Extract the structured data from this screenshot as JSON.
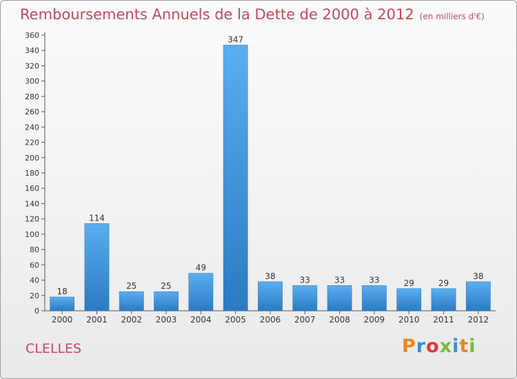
{
  "header": {
    "title": "Remboursements Annuels de la Dette de 2000 à 2012",
    "unit": "(en milliers d'€)"
  },
  "footer": {
    "commune": "CLELLES",
    "logo_text": "Proxiti",
    "logo_colors": [
      "#e8861e",
      "#3a8fd0",
      "#d63a3a",
      "#7ab83a",
      "#3a8fd0",
      "#e8861e",
      "#7ab83a"
    ]
  },
  "colors": {
    "bar_light": "#5aaef0",
    "bar_dark": "#2b7ac2",
    "axis": "#555555",
    "text": "#333333"
  },
  "chart_data": {
    "type": "bar",
    "categories": [
      "2000",
      "2001",
      "2002",
      "2003",
      "2004",
      "2005",
      "2006",
      "2007",
      "2008",
      "2009",
      "2010",
      "2011",
      "2012"
    ],
    "values": [
      18,
      114,
      25,
      25,
      49,
      347,
      38,
      33,
      33,
      33,
      29,
      29,
      38
    ],
    "data_labels": [
      "18",
      "114",
      "25",
      "25",
      "49",
      "347",
      "38",
      "33",
      "33",
      "33",
      "29",
      "29",
      "38"
    ],
    "yticks": [
      "0",
      "20",
      "40",
      "60",
      "80",
      "100",
      "120",
      "140",
      "160",
      "180",
      "200",
      "220",
      "240",
      "260",
      "280",
      "300",
      "320",
      "340",
      "360"
    ],
    "ylim": [
      0,
      360
    ],
    "grid": false
  }
}
